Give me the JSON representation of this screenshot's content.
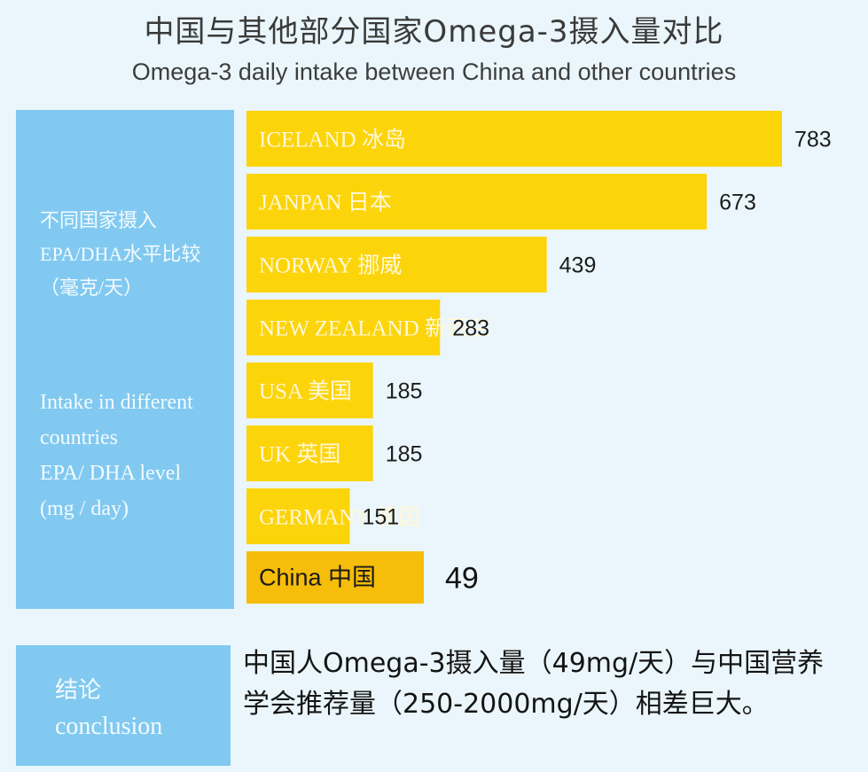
{
  "title_cn": "中国与其他部分国家Omega-3摄入量对比",
  "title_en": "Omega-3 daily intake between China and other countries",
  "side_label_cn": "不同国家摄入\nEPA/DHA水平比较\n（毫克/天）",
  "side_label_en": "Intake in different\ncountries\nEPA/ DHA level\n(mg / day)",
  "conclusion": {
    "label_cn": "结论",
    "label_en": "conclusion",
    "text": "中国人Omega-3摄入量（49mg/天）与中国营养学会推荐量（250-2000mg/天）相差巨大。"
  },
  "colors": {
    "bar": "#fcd40a",
    "highlight_bar": "#f6bd0a",
    "panel": "#81c9f0",
    "background": "#eaf6fb"
  },
  "chart_data": {
    "type": "bar",
    "orientation": "horizontal",
    "categories": [
      "ICELAND 冰岛",
      "JANPAN 日本",
      "NORWAY 挪威",
      "NEW ZEALAND 新西兰",
      "USA 美国",
      "UK 英国",
      "GERMANY 德国",
      "China 中国"
    ],
    "values": [
      783,
      673,
      439,
      283,
      185,
      185,
      151,
      49
    ],
    "highlight": "China 中国",
    "xlim": [
      0,
      783
    ],
    "grid": false,
    "legend": "none"
  }
}
